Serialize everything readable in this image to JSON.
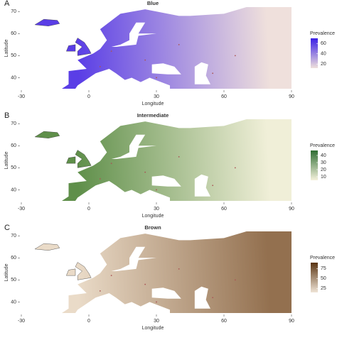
{
  "maps": [
    {
      "label": "A",
      "title": "Blue",
      "x_label": "Longitude",
      "y_label": "Latitude",
      "xlim": [
        -30,
        90
      ],
      "ylim": [
        35,
        72
      ],
      "xticks": [
        -30,
        0,
        30,
        60,
        90
      ],
      "yticks": [
        40,
        50,
        60,
        70
      ],
      "map_colors": [
        "#5a3ee6",
        "#efe0dc"
      ],
      "legend": {
        "title": "Prevalence",
        "lim": [
          12,
          70
        ],
        "ticks": [
          20,
          40,
          60
        ],
        "colors": [
          "#efe0dc",
          "#3a1fe6"
        ]
      }
    },
    {
      "label": "B",
      "title": "Intermediate",
      "x_label": "Longitude",
      "y_label": "Latitude",
      "xlim": [
        -30,
        90
      ],
      "ylim": [
        35,
        72
      ],
      "xticks": [
        -30,
        0,
        30,
        60,
        90
      ],
      "yticks": [
        40,
        50,
        60,
        70
      ],
      "map_colors": [
        "#5f8f4a",
        "#f0efd8"
      ],
      "legend": {
        "title": "Prevalence",
        "lim": [
          5,
          47
        ],
        "ticks": [
          10,
          20,
          30,
          40
        ],
        "colors": [
          "#f5f2dc",
          "#2f6e33"
        ]
      }
    },
    {
      "label": "C",
      "title": "Brown",
      "x_label": "Longitude",
      "y_label": "Latitude",
      "xlim": [
        -30,
        90
      ],
      "ylim": [
        35,
        72
      ],
      "xticks": [
        -30,
        0,
        30,
        60,
        90
      ],
      "yticks": [
        40,
        50,
        60,
        70
      ],
      "map_colors": [
        "#eadbc8",
        "#93704f"
      ],
      "legend": {
        "title": "Prevalence",
        "lim": [
          15,
          90
        ],
        "ticks": [
          25,
          50,
          75
        ],
        "colors": [
          "#f0e4d6",
          "#5a3412"
        ]
      }
    }
  ]
}
